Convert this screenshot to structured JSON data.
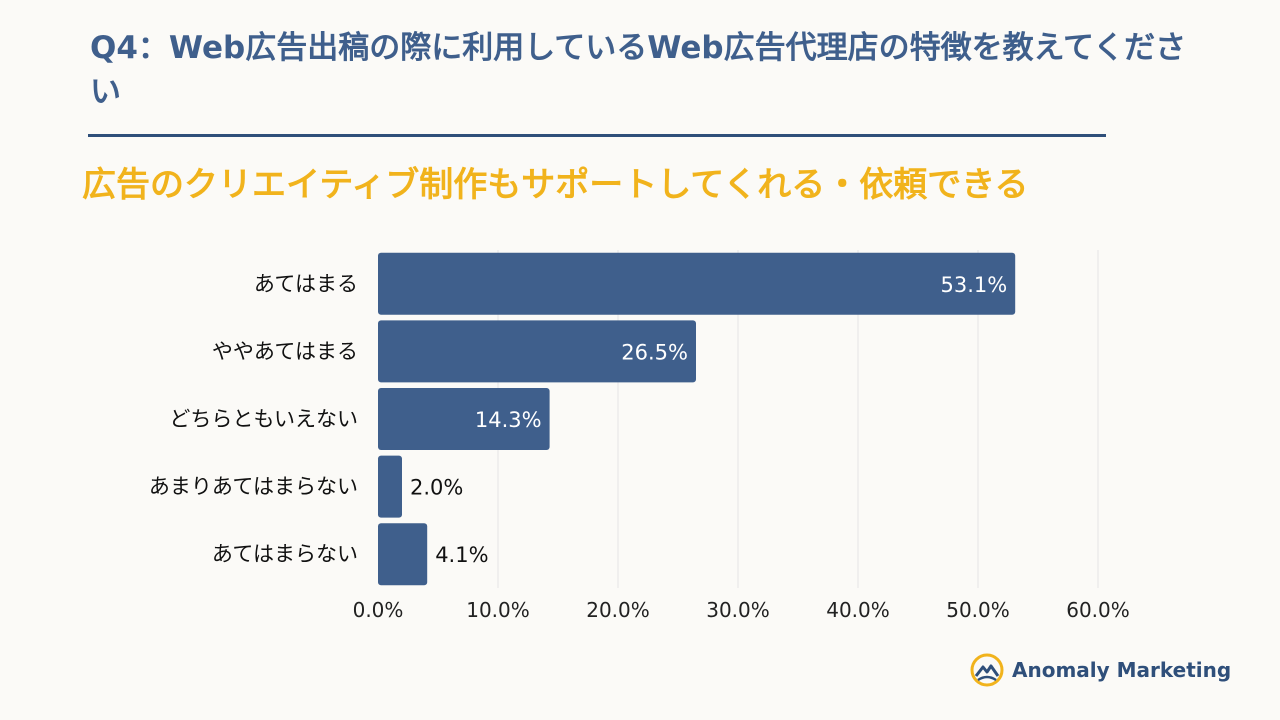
{
  "header": {
    "question": "Q4：Web広告出稿の際に利用しているWeb広告代理店の特徴を教えてください",
    "subtitle": "広告のクリエイティブ制作もサポートしてくれる・依頼できる"
  },
  "colors": {
    "bar": "#3f5f8c",
    "title": "#3f5f8c",
    "subtitle": "#f1b31c",
    "rule": "#2f4f7a",
    "grid": "#e4e4e4",
    "background": "#fbfaf7"
  },
  "chart_data": {
    "type": "bar",
    "orientation": "horizontal",
    "categories": [
      "あてはまる",
      "ややあてはまる",
      "どちらともいえない",
      "あまりあてはまらない",
      "あてはまらない"
    ],
    "values": [
      53.1,
      26.5,
      14.3,
      2.0,
      4.1
    ],
    "value_labels": [
      "53.1%",
      "26.5%",
      "14.3%",
      "2.0%",
      "4.1%"
    ],
    "xlim": [
      0,
      60
    ],
    "x_ticks": [
      "0.0%",
      "10.0%",
      "20.0%",
      "30.0%",
      "40.0%",
      "50.0%",
      "60.0%"
    ],
    "grid": true,
    "xlabel": "",
    "ylabel": ""
  },
  "logo": {
    "icon": "mountain-sun-logo",
    "text": "Anomaly Marketing"
  }
}
